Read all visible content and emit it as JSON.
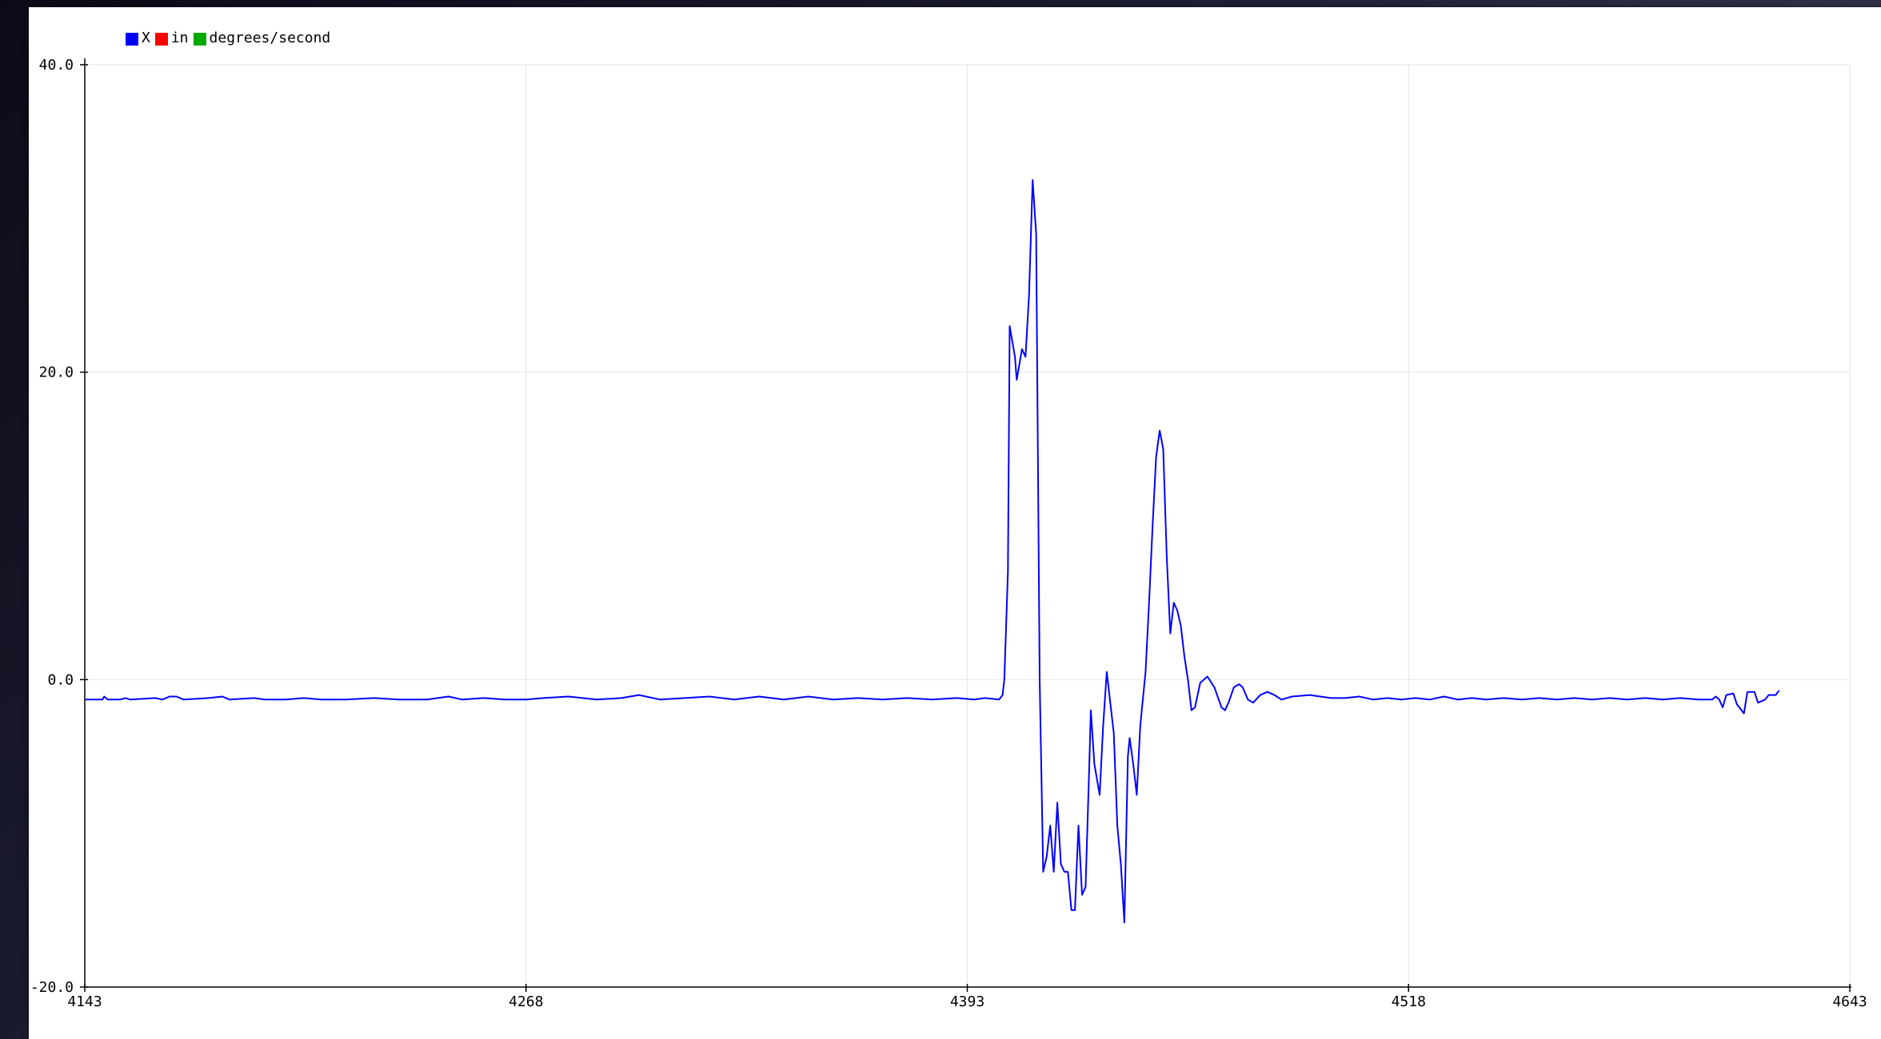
{
  "legend": [
    {
      "label": "X",
      "color": "#0000ff"
    },
    {
      "label": "in",
      "color": "#ff0000"
    },
    {
      "label": "degrees/second",
      "color": "#00aa00"
    }
  ],
  "chart_data": {
    "type": "line",
    "title": "",
    "xlabel": "",
    "ylabel": "",
    "xlim": [
      4143,
      4643
    ],
    "ylim": [
      -20.0,
      40.0
    ],
    "grid": true,
    "legend_position": "top-left",
    "x_ticks": [
      {
        "value": 4143,
        "label": "4143"
      },
      {
        "value": 4268,
        "label": "4268"
      },
      {
        "value": 4393,
        "label": "4393"
      },
      {
        "value": 4518,
        "label": "4518"
      },
      {
        "value": 4643,
        "label": "4643"
      }
    ],
    "y_ticks": [
      {
        "value": 40.0,
        "label": "40.0"
      },
      {
        "value": 20.0,
        "label": "20.0"
      },
      {
        "value": 0.0,
        "label": "0.0"
      },
      {
        "value": -20.0,
        "label": "-20.0"
      }
    ],
    "series": [
      {
        "name": "X",
        "color": "#0000ff",
        "points": [
          [
            4143,
            -1.3
          ],
          [
            4148,
            -1.3
          ],
          [
            4148.5,
            -1.1
          ],
          [
            4149.5,
            -1.3
          ],
          [
            4153,
            -1.3
          ],
          [
            4154.5,
            -1.2
          ],
          [
            4156,
            -1.3
          ],
          [
            4163,
            -1.2
          ],
          [
            4165,
            -1.3
          ],
          [
            4167,
            -1.1
          ],
          [
            4169,
            -1.1
          ],
          [
            4171,
            -1.3
          ],
          [
            4178,
            -1.2
          ],
          [
            4182,
            -1.1
          ],
          [
            4184,
            -1.3
          ],
          [
            4191,
            -1.2
          ],
          [
            4194,
            -1.3
          ],
          [
            4200,
            -1.3
          ],
          [
            4205,
            -1.2
          ],
          [
            4210,
            -1.3
          ],
          [
            4213,
            -1.3
          ],
          [
            4217,
            -1.3
          ],
          [
            4225,
            -1.2
          ],
          [
            4232,
            -1.3
          ],
          [
            4240,
            -1.3
          ],
          [
            4246,
            -1.1
          ],
          [
            4250,
            -1.3
          ],
          [
            4256,
            -1.2
          ],
          [
            4262,
            -1.3
          ],
          [
            4268,
            -1.3
          ],
          [
            4273,
            -1.2
          ],
          [
            4280,
            -1.1
          ],
          [
            4288,
            -1.3
          ],
          [
            4295,
            -1.2
          ],
          [
            4300,
            -1.0
          ],
          [
            4306,
            -1.3
          ],
          [
            4313,
            -1.2
          ],
          [
            4320,
            -1.1
          ],
          [
            4327,
            -1.3
          ],
          [
            4334,
            -1.1
          ],
          [
            4341,
            -1.3
          ],
          [
            4348,
            -1.1
          ],
          [
            4355,
            -1.3
          ],
          [
            4362,
            -1.2
          ],
          [
            4369,
            -1.3
          ],
          [
            4376,
            -1.2
          ],
          [
            4383,
            -1.3
          ],
          [
            4390,
            -1.2
          ],
          [
            4395,
            -1.3
          ],
          [
            4398,
            -1.2
          ],
          [
            4402,
            -1.3
          ],
          [
            4403,
            -1.0
          ],
          [
            4403.5,
            0.0
          ],
          [
            4404.5,
            7.0
          ],
          [
            4405,
            23.0
          ],
          [
            4406.5,
            21.0
          ],
          [
            4407,
            19.5
          ],
          [
            4408.5,
            21.5
          ],
          [
            4409.5,
            21.0
          ],
          [
            4410.5,
            25.0
          ],
          [
            4411.5,
            32.5
          ],
          [
            4412.5,
            29.0
          ],
          [
            4413.5,
            0.0
          ],
          [
            4414.5,
            -12.5
          ],
          [
            4415.5,
            -11.5
          ],
          [
            4416.5,
            -9.5
          ],
          [
            4417.5,
            -12.5
          ],
          [
            4418.5,
            -8.0
          ],
          [
            4419.5,
            -12.0
          ],
          [
            4420.5,
            -12.5
          ],
          [
            4421.5,
            -12.5
          ],
          [
            4422.5,
            -15.0
          ],
          [
            4423.5,
            -15.0
          ],
          [
            4424.5,
            -9.5
          ],
          [
            4425.5,
            -14.0
          ],
          [
            4426.5,
            -13.5
          ],
          [
            4427.5,
            -6.0
          ],
          [
            4428,
            -2.0
          ],
          [
            4429,
            -5.5
          ],
          [
            4430.5,
            -7.5
          ],
          [
            4431.5,
            -3.0
          ],
          [
            4432.5,
            0.5
          ],
          [
            4433.5,
            -1.5
          ],
          [
            4434.5,
            -3.5
          ],
          [
            4435.5,
            -9.5
          ],
          [
            4436.5,
            -12.0
          ],
          [
            4437.5,
            -15.8
          ],
          [
            4438.5,
            -5.0
          ],
          [
            4439,
            -3.8
          ],
          [
            4440,
            -5.5
          ],
          [
            4441,
            -7.5
          ],
          [
            4442,
            -3.0
          ],
          [
            4443.5,
            0.5
          ],
          [
            4444.5,
            5.0
          ],
          [
            4445.5,
            10.0
          ],
          [
            4446.5,
            14.5
          ],
          [
            4447.5,
            16.2
          ],
          [
            4448.5,
            15.0
          ],
          [
            4449.5,
            8.0
          ],
          [
            4450.5,
            3.0
          ],
          [
            4451.5,
            5.0
          ],
          [
            4452.5,
            4.5
          ],
          [
            4453.5,
            3.5
          ],
          [
            4454.5,
            1.5
          ],
          [
            4455.5,
            0.0
          ],
          [
            4456.5,
            -2.0
          ],
          [
            4457.5,
            -1.8
          ],
          [
            4459,
            -0.2
          ],
          [
            4461,
            0.2
          ],
          [
            4463,
            -0.5
          ],
          [
            4465,
            -1.8
          ],
          [
            4466,
            -2.0
          ],
          [
            4467,
            -1.5
          ],
          [
            4468.5,
            -0.5
          ],
          [
            4470,
            -0.3
          ],
          [
            4471,
            -0.5
          ],
          [
            4472.5,
            -1.3
          ],
          [
            4474,
            -1.5
          ],
          [
            4476,
            -1.0
          ],
          [
            4478,
            -0.8
          ],
          [
            4480,
            -1.0
          ],
          [
            4482,
            -1.3
          ],
          [
            4485,
            -1.1
          ],
          [
            4490,
            -1.0
          ],
          [
            4493,
            -1.1
          ],
          [
            4496,
            -1.2
          ],
          [
            4500,
            -1.2
          ],
          [
            4504,
            -1.1
          ],
          [
            4508,
            -1.3
          ],
          [
            4512,
            -1.2
          ],
          [
            4516,
            -1.3
          ],
          [
            4520,
            -1.2
          ],
          [
            4524,
            -1.3
          ],
          [
            4528,
            -1.1
          ],
          [
            4532,
            -1.3
          ],
          [
            4536,
            -1.2
          ],
          [
            4540,
            -1.3
          ],
          [
            4545,
            -1.2
          ],
          [
            4550,
            -1.3
          ],
          [
            4555,
            -1.2
          ],
          [
            4560,
            -1.3
          ],
          [
            4565,
            -1.2
          ],
          [
            4570,
            -1.3
          ],
          [
            4575,
            -1.2
          ],
          [
            4580,
            -1.3
          ],
          [
            4585,
            -1.2
          ],
          [
            4590,
            -1.3
          ],
          [
            4595,
            -1.2
          ],
          [
            4600,
            -1.3
          ],
          [
            4604,
            -1.3
          ],
          [
            4605,
            -1.1
          ],
          [
            4606,
            -1.3
          ],
          [
            4607,
            -1.8
          ],
          [
            4608,
            -1.0
          ],
          [
            4610,
            -0.9
          ],
          [
            4611,
            -1.6
          ],
          [
            4613,
            -2.2
          ],
          [
            4614,
            -0.8
          ],
          [
            4616,
            -0.8
          ],
          [
            4617,
            -1.5
          ],
          [
            4619,
            -1.3
          ],
          [
            4620,
            -1.0
          ],
          [
            4622,
            -1.0
          ],
          [
            4623,
            -0.7
          ]
        ]
      }
    ]
  }
}
